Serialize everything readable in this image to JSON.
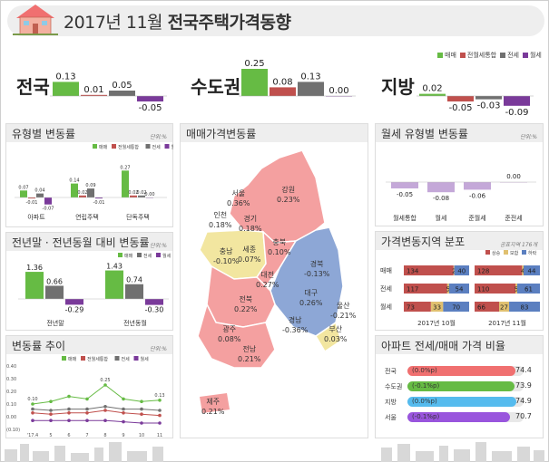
{
  "header": {
    "title_prefix": "2017년 11월 ",
    "title_bold": "전국주택가격동향"
  },
  "colors": {
    "sale": "#66bb44",
    "jeonwol": "#c0504d",
    "jeonse": "#707070",
    "wolse": "#7a3a9a",
    "up": "#c0504d",
    "flat": "#e0c070",
    "down": "#5b7fc0"
  },
  "legend_top": [
    "매매",
    "전월세통합",
    "전세",
    "월세"
  ],
  "chart_data": [
    {
      "type": "bar",
      "id": "regional",
      "categories": [
        "전국",
        "수도권",
        "지방"
      ],
      "series": [
        {
          "name": "매매",
          "values": [
            0.13,
            0.25,
            0.02
          ]
        },
        {
          "name": "전월세통합",
          "values": [
            0.01,
            0.08,
            -0.05
          ]
        },
        {
          "name": "전세",
          "values": [
            0.05,
            0.13,
            -0.03
          ]
        },
        {
          "name": "월세",
          "values": [
            -0.05,
            0.0,
            -0.09
          ]
        }
      ],
      "labels": [
        [
          "0.13",
          "0.01",
          "0.05",
          "-0.05"
        ],
        [
          "0.25",
          "0.08",
          "0.13",
          "0.00"
        ],
        [
          "0.02",
          "-0.05",
          "-0.03",
          "-0.09"
        ]
      ]
    },
    {
      "type": "bar",
      "id": "by_type",
      "title": "유형별 변동률",
      "unit": "단위:%",
      "categories": [
        "아파트",
        "연립주택",
        "단독주택"
      ],
      "series": [
        {
          "name": "매매",
          "values": [
            0.07,
            0.14,
            0.27
          ]
        },
        {
          "name": "전월세통합",
          "values": [
            -0.01,
            0.02,
            0.02
          ]
        },
        {
          "name": "전세",
          "values": [
            0.04,
            0.09,
            0.02
          ]
        },
        {
          "name": "월세",
          "values": [
            -0.07,
            -0.01,
            0.0
          ]
        }
      ],
      "labels": [
        [
          "0.07",
          "-0.01",
          "0.04",
          "-0.07"
        ],
        [
          "0.14",
          "0.02",
          "0.09",
          "-0.01"
        ],
        [
          "0.27",
          "0.02",
          "0.02",
          "0.00"
        ]
      ]
    },
    {
      "type": "bar",
      "id": "year_compare",
      "title": "전년말 · 전년동월 대비 변동률",
      "unit": "단위:%",
      "categories": [
        "전년말",
        "전년동월"
      ],
      "series": [
        {
          "name": "매매",
          "values": [
            1.36,
            1.43
          ]
        },
        {
          "name": "전세",
          "values": [
            0.66,
            0.74
          ]
        },
        {
          "name": "월세",
          "values": [
            -0.29,
            -0.3
          ]
        }
      ],
      "labels": [
        [
          "1.36",
          "0.66",
          "-0.29"
        ],
        [
          "1.43",
          "0.74",
          "-0.30"
        ]
      ]
    },
    {
      "type": "line",
      "id": "trend",
      "title": "변동률 추이",
      "unit": "단위:%",
      "x": [
        "'17.4",
        "5",
        "6",
        "7",
        "8",
        "9",
        "10",
        "11"
      ],
      "yticks": [
        "0.40",
        "0.30",
        "0.20",
        "0.10",
        "0.00",
        "(0.10)"
      ],
      "ylim": [
        -0.1,
        0.4
      ],
      "series": [
        {
          "name": "매매",
          "values": [
            0.1,
            0.12,
            0.16,
            0.14,
            0.25,
            0.14,
            0.12,
            0.13
          ]
        },
        {
          "name": "전월세통합",
          "values": [
            0.03,
            0.02,
            0.03,
            0.03,
            0.05,
            0.03,
            0.02,
            0.01
          ]
        },
        {
          "name": "전세",
          "values": [
            0.06,
            0.05,
            0.06,
            0.06,
            0.08,
            0.06,
            0.06,
            0.05
          ]
        },
        {
          "name": "월세",
          "values": [
            -0.03,
            -0.03,
            -0.03,
            -0.03,
            -0.03,
            -0.04,
            -0.05,
            -0.05
          ]
        }
      ],
      "point_labels": {
        "0": "0.10",
        "4": "0.25",
        "7": "0.13"
      }
    },
    {
      "type": "bar",
      "id": "wolse_type",
      "title": "월세 유형별 변동률",
      "unit": "단위:%",
      "categories": [
        "월세통합",
        "월세",
        "준월세",
        "준전세"
      ],
      "values": [
        -0.05,
        -0.08,
        -0.06,
        0.0
      ],
      "labels": [
        "-0.05",
        "-0.08",
        "-0.06",
        "0.00"
      ]
    },
    {
      "type": "bar",
      "id": "distribution",
      "title": "가격변동지역 분포",
      "note": "공표지역 176개",
      "legend": [
        "상승",
        "보합",
        "하락"
      ],
      "groups": [
        "2017년 10월",
        "2017년 11월"
      ],
      "rows": [
        "매매",
        "전세",
        "월세"
      ],
      "values": [
        [
          [
            134,
            2,
            40
          ],
          [
            128,
            4,
            44
          ]
        ],
        [
          [
            117,
            5,
            54
          ],
          [
            110,
            5,
            61
          ]
        ],
        [
          [
            73,
            33,
            70
          ],
          [
            66,
            27,
            83
          ]
        ]
      ]
    },
    {
      "type": "bar",
      "id": "ratio",
      "title": "아파트 전세/매매 가격 비율",
      "categories": [
        "전국",
        "수도권",
        "지방",
        "서울"
      ],
      "values": [
        74.4,
        73.9,
        74.9,
        70.7
      ],
      "changes": [
        "(0.0%p)",
        "(-0.1%p)",
        "(0.0%p)",
        "(-0.1%p)"
      ],
      "bar_colors": [
        "#f07070",
        "#66bb44",
        "#55bbee",
        "#9955dd"
      ]
    }
  ],
  "map": {
    "title": "매매가격변동률",
    "regions": [
      {
        "name": "서울",
        "value": "0.36%"
      },
      {
        "name": "강원",
        "value": "0.23%"
      },
      {
        "name": "인천",
        "value": "0.18%"
      },
      {
        "name": "경기",
        "value": "0.18%"
      },
      {
        "name": "충남",
        "value": "-0.10%"
      },
      {
        "name": "세종",
        "value": "0.07%"
      },
      {
        "name": "충북",
        "value": "0.10%"
      },
      {
        "name": "대전",
        "value": "0.27%"
      },
      {
        "name": "경북",
        "value": "-0.13%"
      },
      {
        "name": "전북",
        "value": "0.22%"
      },
      {
        "name": "대구",
        "value": "0.26%"
      },
      {
        "name": "울산",
        "value": "-0.21%"
      },
      {
        "name": "광주",
        "value": "0.08%"
      },
      {
        "name": "경남",
        "value": "-0.36%"
      },
      {
        "name": "부산",
        "value": "0.03%"
      },
      {
        "name": "전남",
        "value": "0.21%"
      },
      {
        "name": "제주",
        "value": "0.21%"
      }
    ]
  }
}
